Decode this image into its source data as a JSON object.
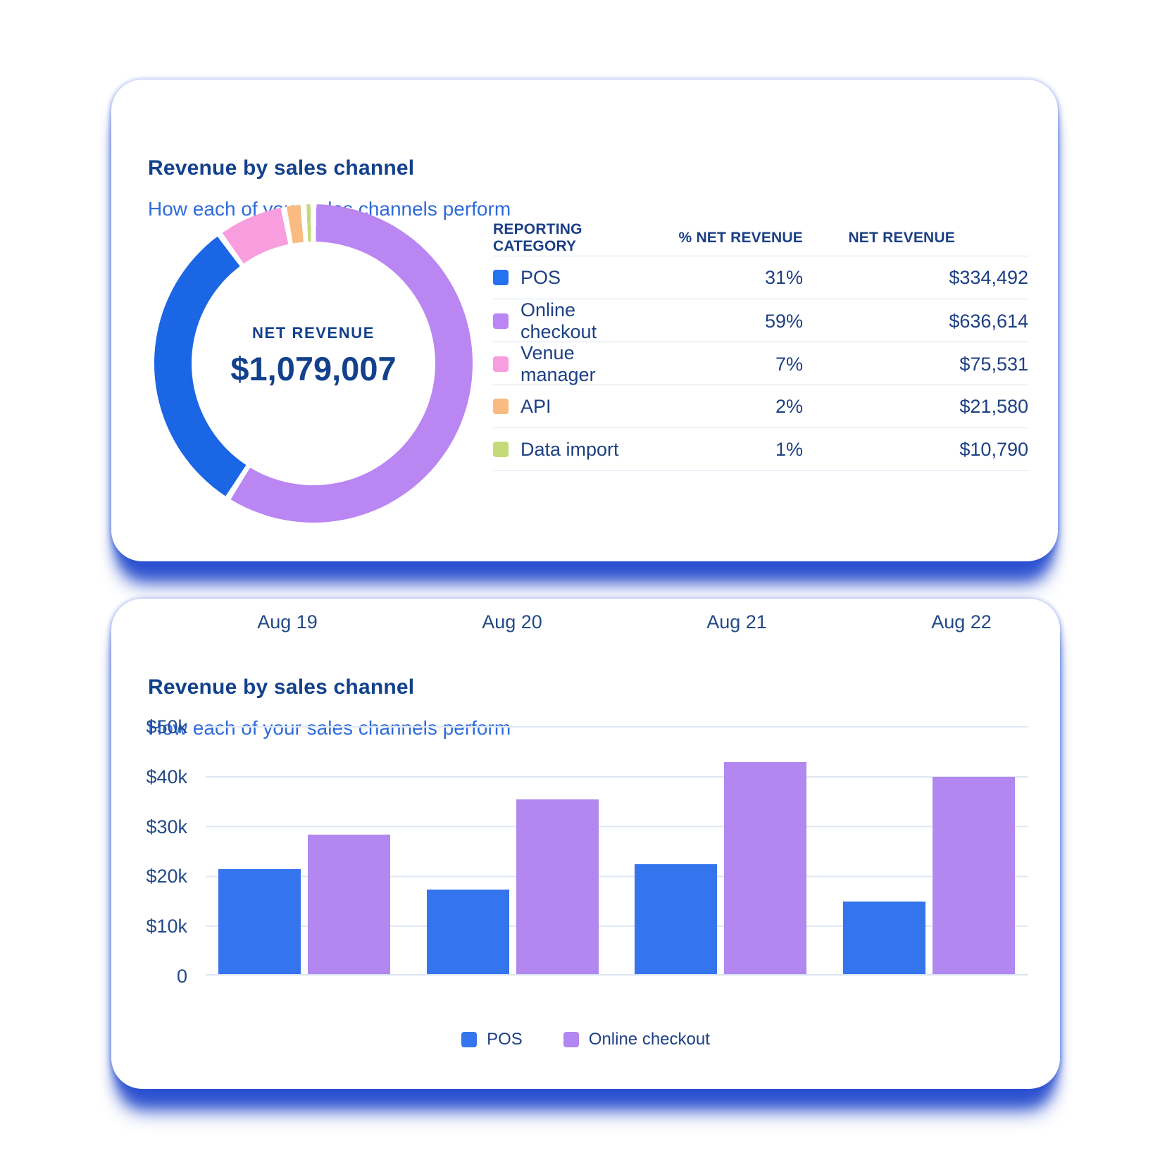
{
  "donut_card": {
    "title": "Revenue by sales channel",
    "subtitle": "How each of your sales channels perform",
    "center_label": "NET REVENUE",
    "center_value": "$1,079,007",
    "table": {
      "headers": {
        "category": "REPORTING CATEGORY",
        "pct": "% NET REVENUE",
        "net": "NET REVENUE"
      },
      "rows": [
        {
          "label": "POS",
          "pct": "31%",
          "value": "$334,492",
          "color": "#2472f0"
        },
        {
          "label": "Online checkout",
          "pct": "59%",
          "value": "$636,614",
          "color": "#bb85f4"
        },
        {
          "label": "Venue manager",
          "pct": "7%",
          "value": "$75,531",
          "color": "#f89ddd"
        },
        {
          "label": "API",
          "pct": "2%",
          "value": "$21,580",
          "color": "#f9bb82"
        },
        {
          "label": "Data import",
          "pct": "1%",
          "value": "$10,790",
          "color": "#c4da77"
        }
      ]
    },
    "chart_data": {
      "type": "pie",
      "title": "Revenue by sales channel",
      "labels": [
        "Online checkout",
        "POS",
        "Venue manager",
        "API",
        "Data import"
      ],
      "values": [
        59,
        31,
        7,
        2,
        1
      ],
      "amounts": [
        "$636,614",
        "$334,492",
        "$75,531",
        "$21,580",
        "$10,790"
      ],
      "colors": [
        "#ba86f2",
        "#1b66e4",
        "#f89ddd",
        "#f9bb82",
        "#c4da77"
      ],
      "center": {
        "label": "NET REVENUE",
        "value": "$1,079,007"
      },
      "start_angle_deg": 0,
      "direction": "clockwise"
    }
  },
  "bar_card": {
    "title": "Revenue by sales channel",
    "subtitle": "How each of your sales channels perform",
    "chart_data": {
      "type": "bar",
      "categories": [
        "Aug 19",
        "Aug 20",
        "Aug 21",
        "Aug 22"
      ],
      "series": [
        {
          "name": "POS",
          "color": "#3474ed",
          "values": [
            21000,
            17000,
            22000,
            14500
          ]
        },
        {
          "name": "Online checkout",
          "color": "#b287ef",
          "values": [
            28000,
            35000,
            42500,
            39500
          ]
        }
      ],
      "ylim": [
        0,
        50000
      ],
      "yticks": [
        "$50k",
        "$40k",
        "$30k",
        "$20k",
        "$10k",
        "0"
      ],
      "grid": true,
      "legend_position": "bottom"
    }
  }
}
